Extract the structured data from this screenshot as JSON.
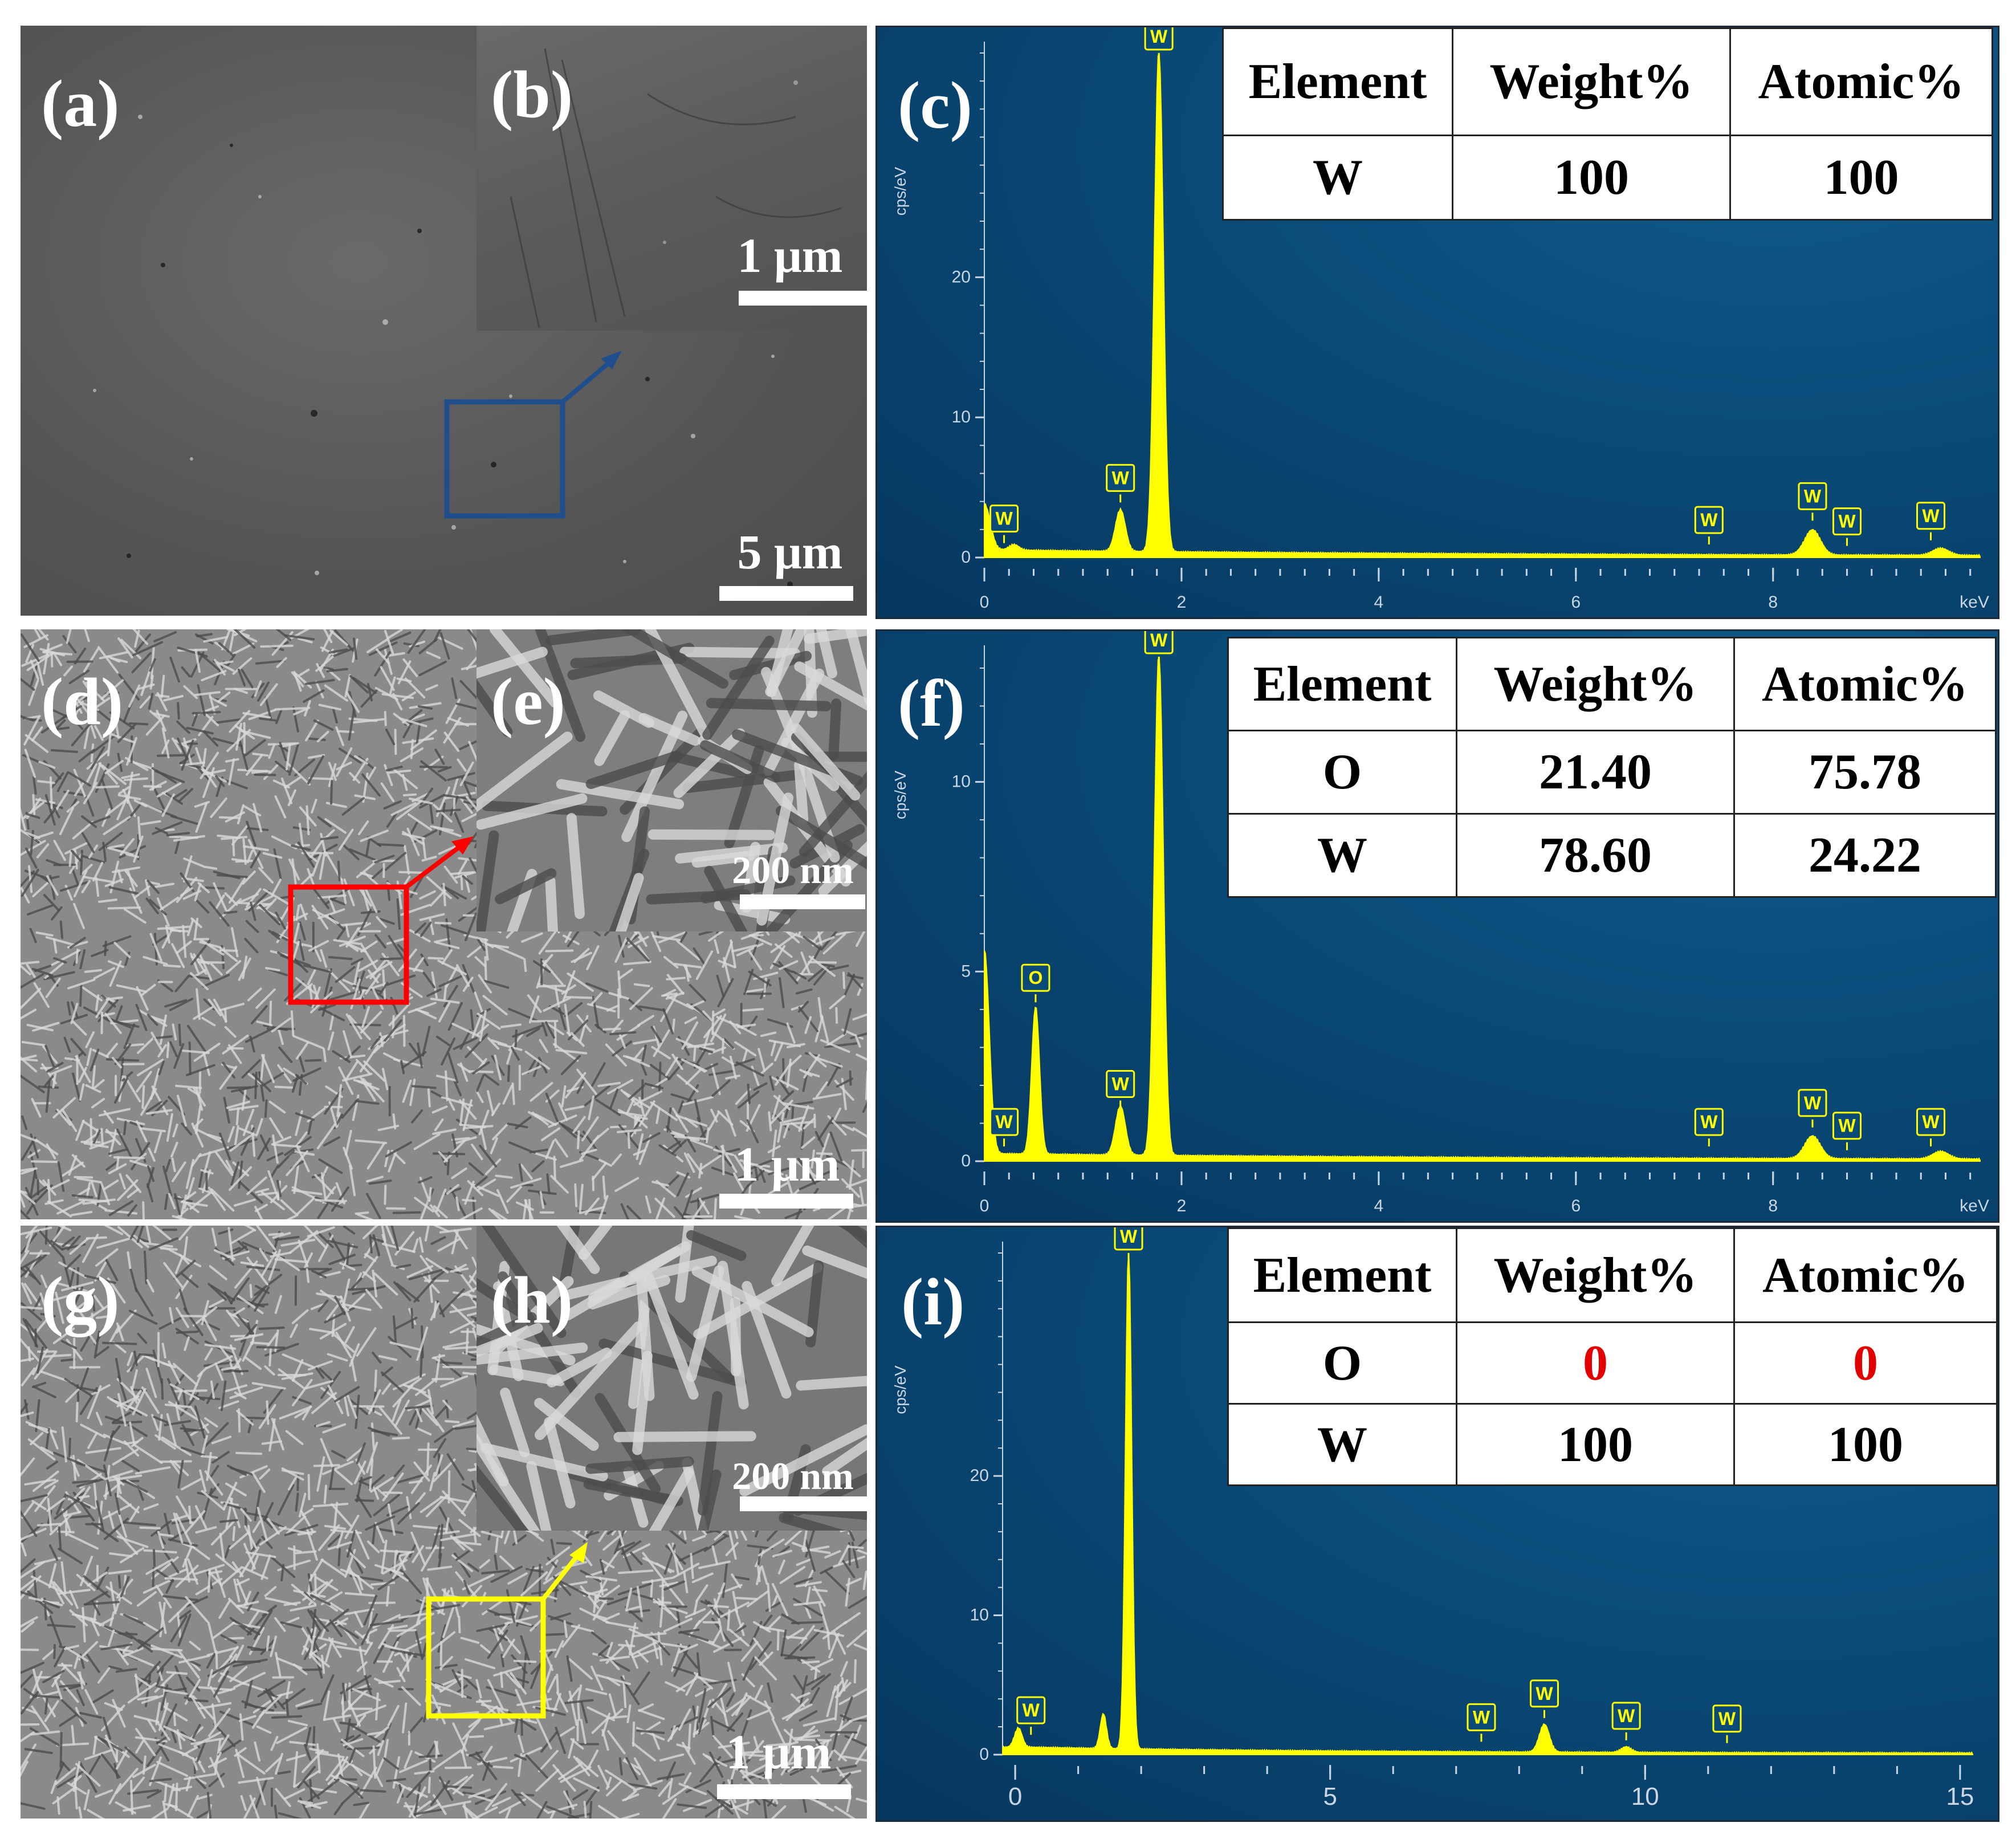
{
  "panels": {
    "a": {
      "label": "(a)",
      "scale": "5 μm"
    },
    "b": {
      "label": "(b)",
      "scale": "1 μm"
    },
    "c": {
      "label": "(c)"
    },
    "d": {
      "label": "(d)",
      "scale": "1 μm"
    },
    "e": {
      "label": "(e)",
      "scale": "200 nm"
    },
    "f": {
      "label": "(f)"
    },
    "g": {
      "label": "(g)",
      "scale": "1 μm"
    },
    "h": {
      "label": "(h)",
      "scale": "200 nm"
    },
    "i": {
      "label": "(i)"
    }
  },
  "colors": {
    "spectrum": "#ffff00",
    "box_ab": "#1f4e8c",
    "box_de": "#ff0000",
    "box_gh": "#ffff00",
    "zero_highlight": "#e20000"
  },
  "tables": {
    "c": {
      "header": [
        "Element",
        "Weight%",
        "Atomic%"
      ],
      "rows": [
        [
          "W",
          "100",
          "100"
        ]
      ]
    },
    "f": {
      "header": [
        "Element",
        "Weight%",
        "Atomic%"
      ],
      "rows": [
        [
          "O",
          "21.40",
          "75.78"
        ],
        [
          "W",
          "78.60",
          "24.22"
        ]
      ]
    },
    "i": {
      "header": [
        "Element",
        "Weight%",
        "Atomic%"
      ],
      "rows": [
        [
          "O",
          "0",
          "0"
        ],
        [
          "W",
          "100",
          "100"
        ]
      ]
    }
  },
  "chart_data": [
    {
      "type": "line",
      "panel": "c",
      "ylabel": "cps/eV",
      "xunit": "keV",
      "xlim": [
        0,
        10.1
      ],
      "ylim": [
        0,
        36
      ],
      "xticks": [
        0,
        2,
        4,
        6,
        8
      ],
      "yticks": [
        0,
        10,
        20
      ],
      "peaks": [
        {
          "x": 0.0,
          "y": 3.3,
          "width": 0.06
        },
        {
          "x": 0.3,
          "y": 0.4,
          "width": 0.05
        },
        {
          "x": 1.38,
          "y": 3.0,
          "width": 0.05
        },
        {
          "x": 1.77,
          "y": 36.0,
          "width": 0.045
        },
        {
          "x": 8.4,
          "y": 1.8,
          "width": 0.08
        },
        {
          "x": 9.7,
          "y": 0.5,
          "width": 0.08
        }
      ],
      "markers": [
        {
          "x": 0.2,
          "y": 1.6,
          "text": "W"
        },
        {
          "x": 1.38,
          "y": 4.5,
          "text": "W"
        },
        {
          "x": 1.77,
          "y": 36.0,
          "text": "W"
        },
        {
          "x": 7.35,
          "y": 1.5,
          "text": "W"
        },
        {
          "x": 8.4,
          "y": 3.2,
          "text": "W"
        },
        {
          "x": 8.75,
          "y": 1.4,
          "text": "W"
        },
        {
          "x": 9.6,
          "y": 1.8,
          "text": "W"
        }
      ]
    },
    {
      "type": "line",
      "panel": "f",
      "ylabel": "cps/eV",
      "xunit": "keV",
      "xlim": [
        0,
        10.1
      ],
      "ylim": [
        0,
        13.3
      ],
      "xticks": [
        0,
        2,
        4,
        6,
        8
      ],
      "yticks": [
        0,
        5,
        10
      ],
      "peaks": [
        {
          "x": 0.0,
          "y": 5.4,
          "width": 0.05
        },
        {
          "x": 0.52,
          "y": 3.9,
          "width": 0.04
        },
        {
          "x": 1.38,
          "y": 1.3,
          "width": 0.05
        },
        {
          "x": 1.77,
          "y": 13.3,
          "width": 0.045
        },
        {
          "x": 8.4,
          "y": 0.6,
          "width": 0.08
        },
        {
          "x": 9.7,
          "y": 0.2,
          "width": 0.08
        }
      ],
      "markers": [
        {
          "x": 0.52,
          "y": 4.4,
          "text": "O"
        },
        {
          "x": 0.2,
          "y": 0.6,
          "text": "W"
        },
        {
          "x": 1.38,
          "y": 1.6,
          "text": "W"
        },
        {
          "x": 1.77,
          "y": 13.3,
          "text": "W"
        },
        {
          "x": 7.35,
          "y": 0.6,
          "text": "W"
        },
        {
          "x": 8.4,
          "y": 1.1,
          "text": "W"
        },
        {
          "x": 8.75,
          "y": 0.5,
          "text": "W"
        },
        {
          "x": 9.6,
          "y": 0.6,
          "text": "W"
        }
      ]
    },
    {
      "type": "line",
      "panel": "i",
      "ylabel": "cps/eV",
      "xunit": "",
      "xlim": [
        -0.2,
        15.2
      ],
      "ylim": [
        0,
        36
      ],
      "xticks": [
        0,
        5,
        10,
        15
      ],
      "yticks": [
        0,
        10,
        20
      ],
      "peaks": [
        {
          "x": 0.05,
          "y": 1.4,
          "width": 0.06
        },
        {
          "x": 1.4,
          "y": 2.5,
          "width": 0.05
        },
        {
          "x": 1.8,
          "y": 36.0,
          "width": 0.05
        },
        {
          "x": 8.4,
          "y": 2.0,
          "width": 0.08
        },
        {
          "x": 9.7,
          "y": 0.4,
          "width": 0.08
        }
      ],
      "markers": [
        {
          "x": 0.25,
          "y": 2.0,
          "text": "W"
        },
        {
          "x": 1.8,
          "y": 36.0,
          "text": "W"
        },
        {
          "x": 7.4,
          "y": 1.5,
          "text": "W"
        },
        {
          "x": 8.4,
          "y": 3.2,
          "text": "W"
        },
        {
          "x": 9.7,
          "y": 1.6,
          "text": "W"
        },
        {
          "x": 11.3,
          "y": 1.4,
          "text": "W"
        }
      ]
    }
  ]
}
